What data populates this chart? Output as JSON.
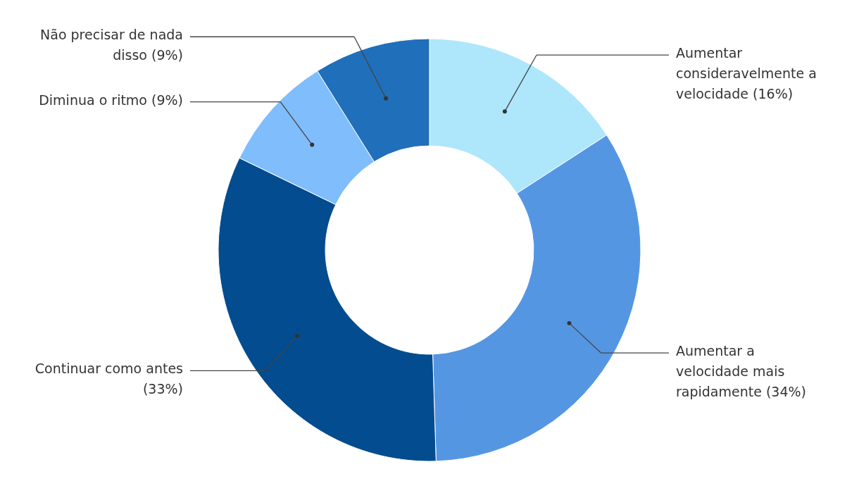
{
  "chart_data": {
    "type": "donut",
    "categories": [
      "Aumentar consideravelmente a velocidade",
      "Aumentar a velocidade mais rapidamente",
      "Continuar como antes",
      "Diminua o ritmo",
      "Não precisar de nada disso"
    ],
    "values": [
      16,
      34,
      33,
      9,
      9
    ],
    "value_labels": [
      "(16%)",
      "(34%)",
      "(33%)",
      "(9%)",
      "(9%)"
    ],
    "colors": [
      "#aee6fc",
      "#5596e3",
      "#024c8f",
      "#80bdfc",
      "#206fba"
    ]
  }
}
